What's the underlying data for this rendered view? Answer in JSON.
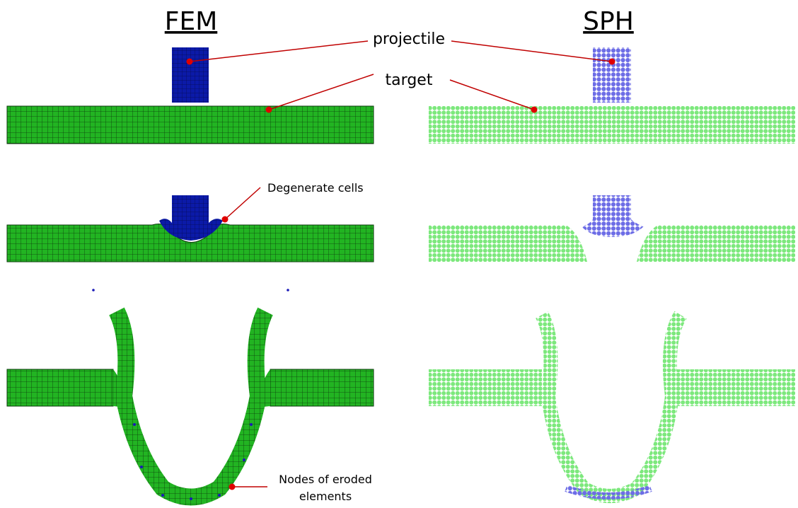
{
  "columns": [
    {
      "title": "FEM"
    },
    {
      "title": "SPH"
    }
  ],
  "labels": {
    "projectile": "projectile",
    "target": "target",
    "degenerate": "Degenerate cells",
    "eroded": [
      "Nodes of eroded",
      "elements"
    ]
  }
}
